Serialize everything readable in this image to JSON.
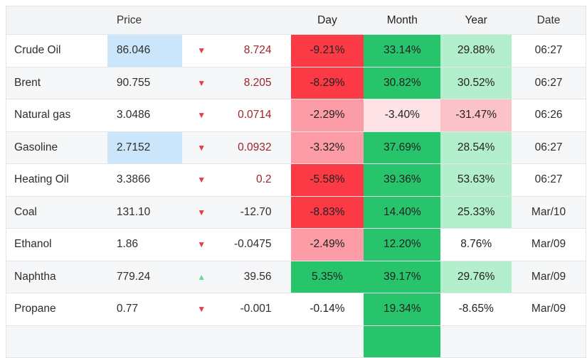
{
  "table": {
    "headers": {
      "name": "",
      "price": "Price",
      "arrow": "",
      "change": "",
      "day": "Day",
      "month": "Month",
      "year": "Year",
      "date": "Date"
    },
    "rows": [
      {
        "name": "Crude Oil",
        "price": "86.046",
        "price_highlight": true,
        "arrow": "down",
        "change": "8.724",
        "change_style": "dark_red",
        "day": "-9.21%",
        "day_heat": "red_strong",
        "month": "33.14%",
        "month_heat": "green_strong",
        "year": "29.88%",
        "year_heat": "green_light",
        "date": "06:27"
      },
      {
        "name": "Brent",
        "price": "90.755",
        "price_highlight": false,
        "arrow": "down",
        "change": "8.205",
        "change_style": "dark_red",
        "day": "-8.29%",
        "day_heat": "red_strong",
        "month": "30.82%",
        "month_heat": "green_strong",
        "year": "30.52%",
        "year_heat": "green_light",
        "date": "06:27"
      },
      {
        "name": "Natural gas",
        "price": "3.0486",
        "price_highlight": false,
        "arrow": "down",
        "change": "0.0714",
        "change_style": "dark_red",
        "day": "-2.29%",
        "day_heat": "red_medium",
        "month": "-3.40%",
        "month_heat": "red_light",
        "year": "-31.47%",
        "year_heat": "red_soft",
        "date": "06:26"
      },
      {
        "name": "Gasoline",
        "price": "2.7152",
        "price_highlight": true,
        "arrow": "down",
        "change": "0.0932",
        "change_style": "dark_red",
        "day": "-3.32%",
        "day_heat": "red_medium",
        "month": "37.69%",
        "month_heat": "green_strong",
        "year": "28.54%",
        "year_heat": "green_light",
        "date": "06:27"
      },
      {
        "name": "Heating Oil",
        "price": "3.3866",
        "price_highlight": false,
        "arrow": "down",
        "change": "0.2",
        "change_style": "dark_red",
        "day": "-5.58%",
        "day_heat": "red_strong",
        "month": "39.36%",
        "month_heat": "green_strong",
        "year": "53.63%",
        "year_heat": "green_light",
        "date": "06:27"
      },
      {
        "name": "Coal",
        "price": "131.10",
        "price_highlight": false,
        "arrow": "down",
        "change": "-12.70",
        "change_style": "default",
        "day": "-8.83%",
        "day_heat": "red_strong",
        "month": "14.40%",
        "month_heat": "green_strong",
        "year": "25.33%",
        "year_heat": "green_light",
        "date": "Mar/10"
      },
      {
        "name": "Ethanol",
        "price": "1.86",
        "price_highlight": false,
        "arrow": "down",
        "change": "-0.0475",
        "change_style": "default",
        "day": "-2.49%",
        "day_heat": "red_medium",
        "month": "12.20%",
        "month_heat": "green_strong",
        "year": "8.76%",
        "year_heat": "none",
        "date": "Mar/09"
      },
      {
        "name": "Naphtha",
        "price": "779.24",
        "price_highlight": false,
        "arrow": "up",
        "change": "39.56",
        "change_style": "default",
        "day": "5.35%",
        "day_heat": "green_strong",
        "month": "39.17%",
        "month_heat": "green_strong",
        "year": "29.76%",
        "year_heat": "green_light",
        "date": "Mar/09"
      },
      {
        "name": "Propane",
        "price": "0.77",
        "price_highlight": false,
        "arrow": "down",
        "change": "-0.001",
        "change_style": "default",
        "day": "-0.14%",
        "day_heat": "none",
        "month": "19.34%",
        "month_heat": "green_strong",
        "year": "-8.65%",
        "year_heat": "none",
        "date": "Mar/09"
      },
      {
        "name": "",
        "price": "",
        "price_highlight": false,
        "arrow": null,
        "change": "",
        "change_style": "default",
        "day": "",
        "day_heat": "none",
        "month": "",
        "month_heat": "green_strong",
        "year": "",
        "year_heat": "none",
        "date": ""
      }
    ]
  },
  "icons": {
    "down": "▼",
    "up": "▲"
  },
  "palette": {
    "red_strong": "#fb3a46",
    "red_medium": "#fb9ca6",
    "red_light": "#fde3e6",
    "red_soft": "#fbc2ca",
    "green_strong": "#27c46c",
    "green_light": "#b4efcd",
    "price_highlight_blue": "#cbe6fa",
    "arrow_down_red": "#ee3842",
    "arrow_up_green": "#74d29b",
    "change_dark_red": "#9e222a",
    "default_text": "#2d2d2d"
  }
}
